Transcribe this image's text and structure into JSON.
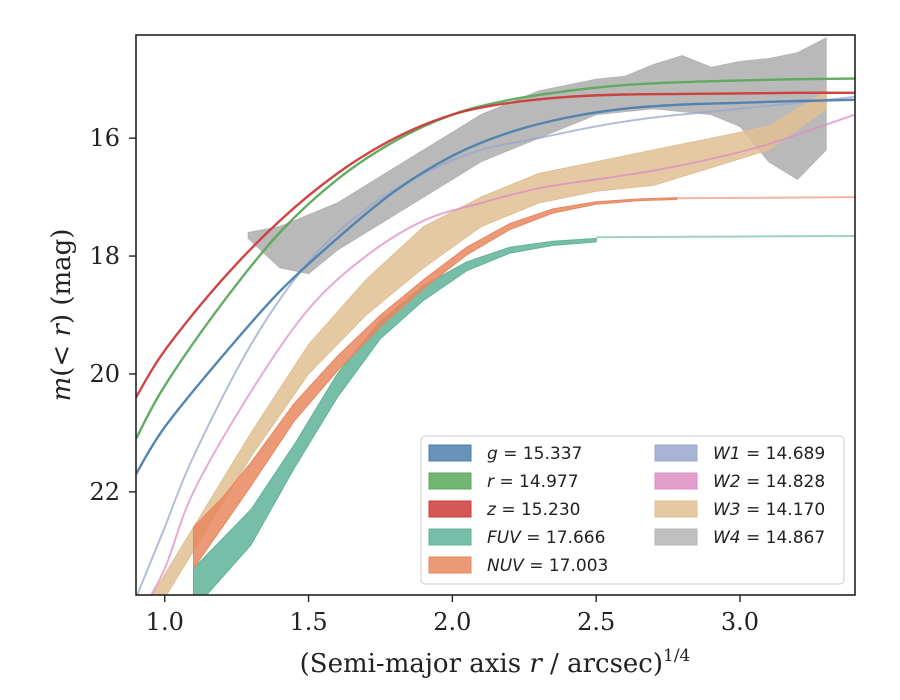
{
  "chart_data": {
    "type": "line",
    "title": "",
    "xlabel": "(Semi-major axis r / arcsec)^{1/4}",
    "ylabel": "m(< r) (mag)",
    "xlim": [
      0.9,
      3.4
    ],
    "ylim": [
      23.75,
      14.25
    ],
    "y_inverted": true,
    "xticks": [
      "1.0",
      "1.5",
      "2.0",
      "2.5",
      "3.0"
    ],
    "yticks": [
      "16",
      "18",
      "20",
      "22"
    ],
    "grid": false,
    "legend_position": "lower-right",
    "legend_columns": 2,
    "series": [
      {
        "name": "g = 15.337",
        "label_var": "g",
        "label_val": "15.337",
        "color": "#4c7fae",
        "style": "curve",
        "x": [
          0.9,
          1.0,
          1.2,
          1.4,
          1.6,
          1.8,
          2.0,
          2.2,
          2.4,
          2.6,
          2.8,
          3.0,
          3.2,
          3.4
        ],
        "y": [
          21.7,
          20.9,
          19.7,
          18.6,
          17.7,
          16.9,
          16.3,
          15.9,
          15.65,
          15.5,
          15.43,
          15.4,
          15.37,
          15.35
        ]
      },
      {
        "name": "r = 14.977",
        "label_var": "r",
        "label_val": "14.977",
        "color": "#5ba85b",
        "style": "curve",
        "x": [
          0.9,
          1.0,
          1.2,
          1.4,
          1.6,
          1.8,
          2.0,
          2.2,
          2.4,
          2.6,
          2.8,
          3.0,
          3.2,
          3.4
        ],
        "y": [
          21.1,
          20.2,
          18.8,
          17.6,
          16.7,
          16.05,
          15.6,
          15.35,
          15.2,
          15.1,
          15.05,
          15.02,
          15.0,
          14.99
        ]
      },
      {
        "name": "z = 15.230",
        "label_var": "z",
        "label_val": "15.230",
        "color": "#cc3b3b",
        "style": "curve",
        "x": [
          0.9,
          1.0,
          1.2,
          1.4,
          1.6,
          1.8,
          2.0,
          2.2,
          2.4,
          2.6,
          2.8,
          3.0,
          3.2,
          3.4
        ],
        "y": [
          20.4,
          19.6,
          18.4,
          17.4,
          16.6,
          16.0,
          15.6,
          15.4,
          15.3,
          15.26,
          15.25,
          15.24,
          15.23,
          15.23
        ]
      },
      {
        "name": "FUV = 17.666",
        "label_var": "FUV",
        "label_val": "17.666",
        "color": "#5fb39a",
        "style": "band",
        "x": [
          1.1,
          1.3,
          1.45,
          1.6,
          1.75,
          1.9,
          2.05,
          2.2,
          2.35,
          2.5
        ],
        "y_low": [
          23.3,
          22.3,
          21.2,
          20.0,
          19.1,
          18.5,
          18.1,
          17.85,
          17.75,
          17.7
        ],
        "y_high": [
          24.0,
          22.9,
          21.6,
          20.4,
          19.4,
          18.75,
          18.25,
          17.95,
          17.82,
          17.76
        ],
        "ext_x": [
          2.5,
          3.4
        ],
        "ext_y": [
          17.68,
          17.66
        ]
      },
      {
        "name": "NUV = 17.003",
        "label_var": "NUV",
        "label_val": "17.003",
        "color": "#e8875f",
        "style": "band",
        "x": [
          1.1,
          1.2,
          1.3,
          1.45,
          1.6,
          1.75,
          1.9,
          2.05,
          2.2,
          2.35,
          2.5,
          2.65,
          2.78
        ],
        "y_low": [
          22.6,
          22.1,
          21.5,
          20.5,
          19.7,
          19.0,
          18.4,
          17.85,
          17.45,
          17.2,
          17.08,
          17.03,
          17.01
        ],
        "y_high": [
          23.3,
          22.6,
          21.9,
          20.8,
          19.95,
          19.2,
          18.55,
          17.98,
          17.55,
          17.27,
          17.12,
          17.06,
          17.04
        ],
        "ext_x": [
          2.78,
          3.4
        ],
        "ext_y": [
          17.02,
          17.0
        ]
      },
      {
        "name": "W1 = 14.689",
        "label_var": "W1",
        "label_val": "14.689",
        "color": "#9aa7cc",
        "style": "curve",
        "x": [
          0.9,
          1.0,
          1.1,
          1.3,
          1.5,
          1.7,
          1.9,
          2.1,
          2.3,
          2.5,
          2.7,
          2.9,
          3.1,
          3.4
        ],
        "y": [
          23.8,
          22.6,
          21.4,
          19.5,
          18.1,
          17.2,
          16.6,
          16.2,
          16.0,
          15.8,
          15.65,
          15.55,
          15.45,
          15.3
        ]
      },
      {
        "name": "W2 = 14.828",
        "label_var": "W2",
        "label_val": "14.828",
        "color": "#dd8ec4",
        "style": "curve",
        "x": [
          0.9,
          1.0,
          1.1,
          1.3,
          1.5,
          1.7,
          1.9,
          2.1,
          2.3,
          2.5,
          2.7,
          2.9,
          3.1,
          3.4
        ],
        "y": [
          24.2,
          23.3,
          22.0,
          20.3,
          18.9,
          18.0,
          17.4,
          17.1,
          16.85,
          16.7,
          16.55,
          16.35,
          16.1,
          15.6
        ]
      },
      {
        "name": "W3 = 14.170",
        "label_var": "W3",
        "label_val": "14.170",
        "color": "#dfc093",
        "style": "band",
        "x": [
          0.95,
          1.1,
          1.3,
          1.5,
          1.7,
          1.9,
          2.1,
          2.3,
          2.5,
          2.7,
          2.9,
          3.1,
          3.3
        ],
        "y_low": [
          23.8,
          22.6,
          21.0,
          19.5,
          18.4,
          17.5,
          17.0,
          16.6,
          16.4,
          16.2,
          16.0,
          15.8,
          15.2
        ],
        "y_high": [
          24.2,
          23.0,
          21.4,
          20.0,
          19.0,
          18.2,
          17.5,
          17.1,
          16.9,
          16.8,
          16.5,
          16.2,
          15.5
        ]
      },
      {
        "name": "W4 = 14.867",
        "label_var": "W4",
        "label_val": "14.867",
        "color": "#b5b5b5",
        "style": "band",
        "x": [
          1.29,
          1.4,
          1.5,
          1.6,
          1.7,
          1.8,
          1.9,
          2.0,
          2.1,
          2.2,
          2.3,
          2.4,
          2.5,
          2.6,
          2.7,
          2.8,
          2.9,
          3.0,
          3.1,
          3.2,
          3.3
        ],
        "y_low": [
          17.7,
          18.2,
          18.3,
          17.9,
          17.6,
          17.3,
          17.0,
          16.7,
          16.4,
          16.2,
          16.0,
          15.8,
          15.6,
          15.55,
          15.5,
          15.55,
          15.6,
          15.8,
          16.4,
          16.7,
          16.2
        ],
        "y_high": [
          17.6,
          17.5,
          17.3,
          17.1,
          16.8,
          16.5,
          16.2,
          15.9,
          15.6,
          15.4,
          15.2,
          15.1,
          15.0,
          14.95,
          14.75,
          14.6,
          14.8,
          14.7,
          14.65,
          14.55,
          14.3
        ]
      }
    ]
  }
}
